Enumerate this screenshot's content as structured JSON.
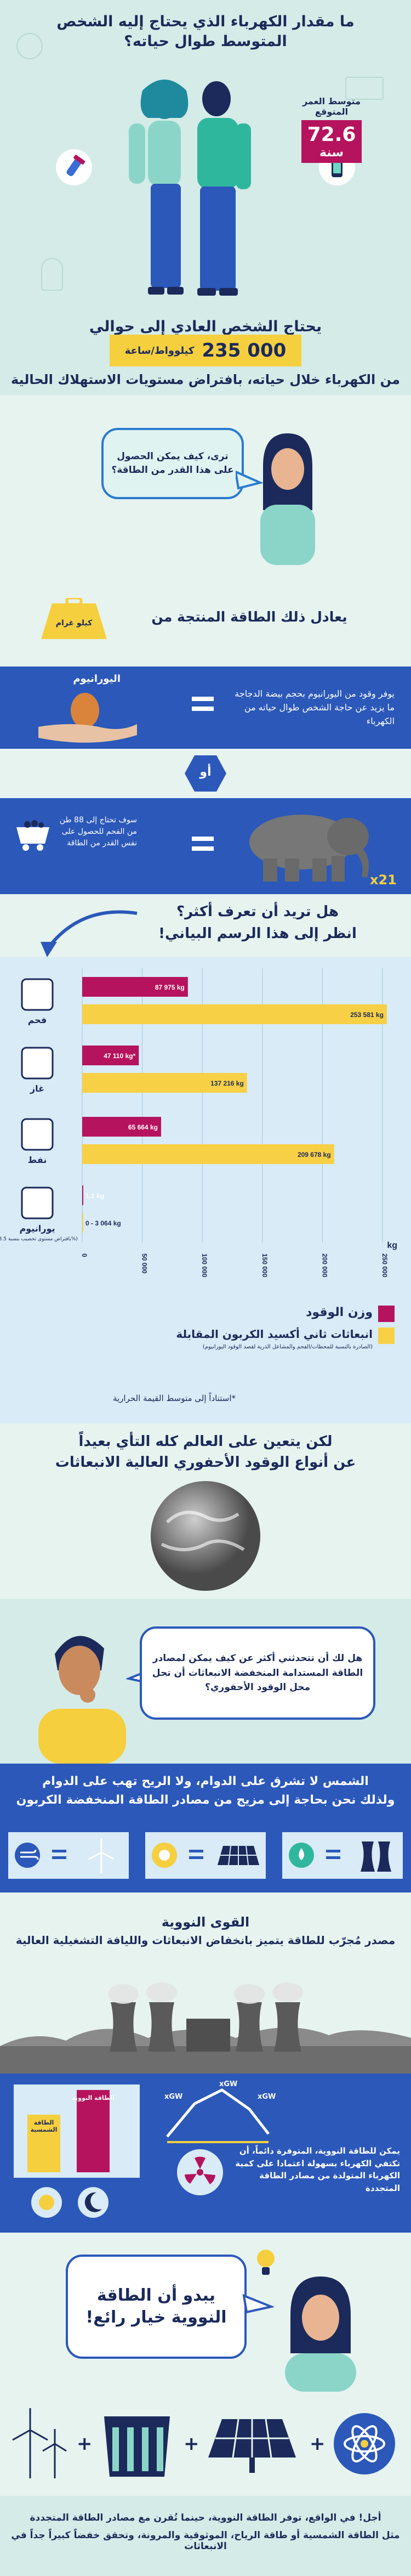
{
  "header": {
    "title": "ما مقدار الكهرباء الذي يحتاج إليه الشخص المتوسط طوال حياته؟",
    "life_expectancy": {
      "label_line1": "متوسط العمر",
      "label_line2": "المتوقع",
      "value": "72.6",
      "unit": "سنة"
    },
    "needs_text": "يحتاج الشخص العادي إلى حوالي",
    "kwh_value": "235 000",
    "kwh_unit": "كيلوواط/ساعة",
    "during_life_text": "من الكهرباء خلال حياته، بافتراض مستويات الاستهلاك الحالية"
  },
  "question_bubble": {
    "text": "ترى، كيف يمكن الحصول على هذا القدر من الطاقة؟"
  },
  "equivalent": {
    "weight_label": "كيلو غرام",
    "title": "يعادل ذلك الطاقة المنتجة من"
  },
  "uranium": {
    "label": "اليورانيوم",
    "text": "يوفر وقود من اليورانيوم بحجم بيضة الدجاجة ما يزيد عن حاجة الشخص طوال حياته من الكهرباء"
  },
  "or_label": "أو",
  "coal": {
    "text": "سوف تحتاج إلى 88 طن من الفحم للحصول على نفس القدر من الطاقة",
    "multiplier": "x21"
  },
  "more": {
    "line1": "هل تريد أن تعرف أكثر؟",
    "line2": "انظر إلى هذا الرسم البياني!"
  },
  "chart_data": {
    "type": "bar",
    "orientation": "horizontal",
    "categories": [
      "فحم",
      "غاز",
      "نفط",
      "يورانيوم"
    ],
    "uranium_note": "(بافتراض مستوى تخصيب بنسبة 3.5%)",
    "series": [
      {
        "name": "وزن الوقود",
        "values": [
          87975,
          47110,
          65664,
          1.1
        ],
        "labels": [
          "87 975 kg",
          "47 110 kg*",
          "65 664 kg",
          "1.1 kg"
        ],
        "color": "#b5135d"
      },
      {
        "name": "انبعاثات ثاني أكسيد الكربون المقابلة",
        "values": [
          253581,
          137216,
          209678,
          2
        ],
        "labels": [
          "253 581 kg",
          "137 216 kg",
          "209 678 kg",
          "0 - 3 064 kg"
        ],
        "color": "#f7d046"
      }
    ],
    "xlim": [
      0,
      260000
    ],
    "xticks": [
      "0",
      "50 000",
      "100 000",
      "150 000",
      "200 000",
      "250 000"
    ],
    "x_unit": "kg",
    "legend_weight": "وزن الوقود",
    "legend_emissions": "انبعاثات ثاني أكسيد الكربون المقابلة",
    "legend_emissions_note": "(الصادرة بالنسبة للمحطات/الفحم والمشاعل الذرية لقصد الوقود اليورانيوم)",
    "footnote": "*استناداً إلى متوسط القيمة الحرارية"
  },
  "world": {
    "line1": "لكن يتعين على العالم كله التأي بعيداً",
    "line2": "عن أنواع الوقود الأحفوري العالية الانبعاثات"
  },
  "thinking_bubble": {
    "text": "هل لك أن تتحدثني أكثر عن كيف يمكن لمصادر الطاقة المستدامة المنخفضة الانبعاثات أن تحل محل الوقود الأحفوري؟"
  },
  "sun_wind": {
    "line1": "الشمس لا تشرق على الدوام، ولا الريح تهب على الدوام",
    "line2": "ولذلك نحن بحاجة إلى مزيج من مصادر الطاقة المنخفضة الكربون"
  },
  "nuclear": {
    "title": "القوى النووية",
    "subtitle": "مصدر مُجرّب للطاقة يتميز بانخفاض الانبعاثات والليافة التشغيلية العالية"
  },
  "capacity": {
    "nuclear_bar_label": "الطاقة النووية",
    "solar_bar_label": "الطاقة الشمسية",
    "xgw": "xGW",
    "text": "يمكن للطاقة النووية، المتوفرة دائماً، أن تكتفي الكهرباء بسهولة اعتمادا على كمية الكهرباء المتولدة من مصادر الطاقة المتجددة"
  },
  "good_choice": {
    "text": "يبدو أن الطاقة النووية خيار رائع!"
  },
  "footer": {
    "line1": "أجل! في الواقع، توفر الطاقة النووية، حينما تُقرن مع مصادر الطاقة المتجددة",
    "line2": "مثل الطاقة الشمسية أو طاقة الرياح، الموثوقية والمرونة، وتحقق خفضاً كبيراً جداً في الانبعاثات"
  },
  "colors": {
    "navy": "#1b2a5a",
    "mint": "#e6f3ef",
    "blue_band": "#2b58b9",
    "magenta": "#b5135d",
    "yellow": "#f7d046",
    "ice": "#d8ebf6"
  }
}
